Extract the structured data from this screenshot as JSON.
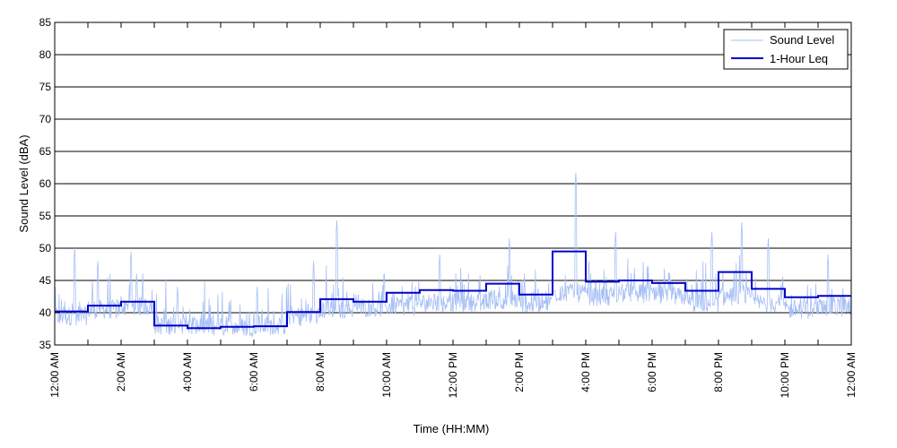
{
  "chart_data": {
    "type": "line",
    "title": "",
    "xlabel": "Time (HH:MM)",
    "ylabel": "Sound Level (dBA)",
    "ylim": [
      35,
      85
    ],
    "xlim_hours": [
      0,
      24
    ],
    "y_ticks": [
      35,
      40,
      45,
      50,
      55,
      60,
      65,
      70,
      75,
      80,
      85
    ],
    "x_ticks": [
      {
        "hour": 0,
        "label": "12:00 AM"
      },
      {
        "hour": 2,
        "label": "2:00 AM"
      },
      {
        "hour": 4,
        "label": "4:00 AM"
      },
      {
        "hour": 6,
        "label": "6:00 AM"
      },
      {
        "hour": 8,
        "label": "8:00 AM"
      },
      {
        "hour": 10,
        "label": "10:00 AM"
      },
      {
        "hour": 12,
        "label": "12:00 PM"
      },
      {
        "hour": 14,
        "label": "2:00 PM"
      },
      {
        "hour": 16,
        "label": "4:00 PM"
      },
      {
        "hour": 18,
        "label": "6:00 PM"
      },
      {
        "hour": 20,
        "label": "8:00 PM"
      },
      {
        "hour": 22,
        "label": "10:00 PM"
      },
      {
        "hour": 24,
        "label": "12:00 AM"
      }
    ],
    "grid": "horizontal",
    "legend_position": "top-right",
    "series": [
      {
        "name": "Sound Level",
        "color": "#a6bff5",
        "style": "thin-line",
        "hourly_base": [
          39.5,
          40.5,
          41,
          38,
          37.8,
          37.8,
          38,
          39.5,
          40.5,
          40.8,
          41,
          41.5,
          41.5,
          42,
          41.5,
          43,
          42.5,
          43,
          42.5,
          41.5,
          42.5,
          41.5,
          40.5,
          40.8
        ],
        "peaks": [
          {
            "hour": 0.6,
            "value": 50
          },
          {
            "hour": 1.3,
            "value": 48
          },
          {
            "hour": 2.3,
            "value": 49.5
          },
          {
            "hour": 3.7,
            "value": 44
          },
          {
            "hour": 5.3,
            "value": 42
          },
          {
            "hour": 6.1,
            "value": 44
          },
          {
            "hour": 7.8,
            "value": 48
          },
          {
            "hour": 8.5,
            "value": 54.3
          },
          {
            "hour": 11.6,
            "value": 49
          },
          {
            "hour": 13.7,
            "value": 51.5
          },
          {
            "hour": 15.7,
            "value": 61.7
          },
          {
            "hour": 16.9,
            "value": 52.5
          },
          {
            "hour": 19.8,
            "value": 52.5
          },
          {
            "hour": 20.7,
            "value": 54
          },
          {
            "hour": 21.5,
            "value": 51.5
          },
          {
            "hour": 23.3,
            "value": 49
          }
        ]
      },
      {
        "name": "1-Hour Leq",
        "color": "#0000cc",
        "style": "step",
        "hours": [
          0,
          1,
          2,
          3,
          4,
          5,
          6,
          7,
          8,
          9,
          10,
          11,
          12,
          13,
          14,
          15,
          16,
          17,
          18,
          19,
          20,
          21,
          22,
          23
        ],
        "values": [
          40.2,
          41.1,
          41.7,
          38.0,
          37.6,
          37.8,
          37.9,
          40.1,
          42.1,
          41.7,
          43.1,
          43.5,
          43.4,
          44.5,
          42.8,
          49.5,
          44.8,
          45.0,
          44.6,
          43.4,
          46.3,
          43.7,
          42.4,
          42.6
        ]
      }
    ]
  }
}
